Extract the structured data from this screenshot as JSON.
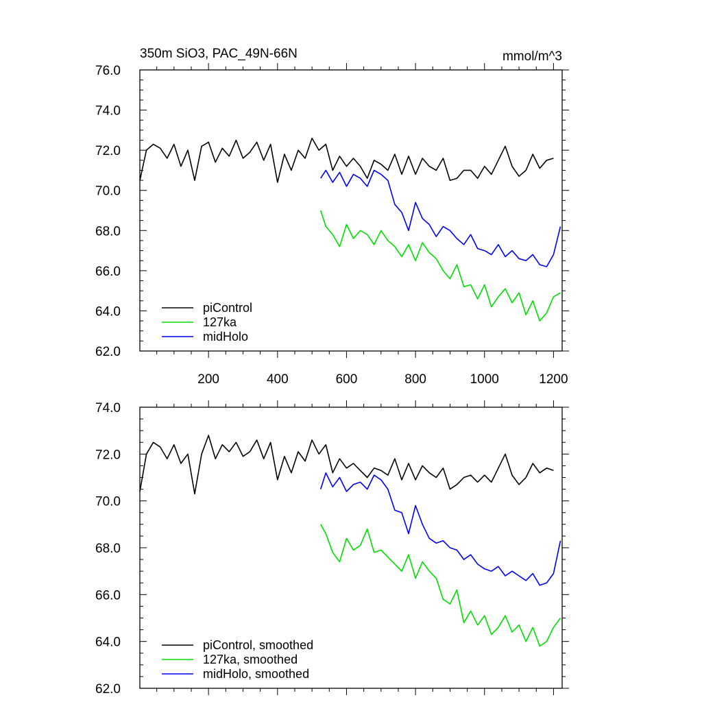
{
  "figure": {
    "title_left": "350m SiO3, PAC_49N-66N",
    "title_right": "mmol/m^3"
  },
  "chart_data": [
    {
      "type": "line",
      "title": "350m SiO3, PAC_49N-66N",
      "units": "mmol/m^3",
      "xlabel": "",
      "ylabel": "",
      "xlim": [
        1,
        1225
      ],
      "ylim": [
        62,
        76
      ],
      "xticks": [
        200,
        400,
        600,
        800,
        1000,
        1200
      ],
      "xtick_labels": [
        "200",
        "400",
        "600",
        "800",
        "1000",
        "1200"
      ],
      "yticks": [
        62,
        64,
        66,
        68,
        70,
        72,
        74,
        76
      ],
      "ytick_labels": [
        "62.0",
        "64.0",
        "66.0",
        "68.0",
        "70.0",
        "72.0",
        "74.0",
        "76.0"
      ],
      "legend": "bottom-left",
      "series": [
        {
          "name": "piControl",
          "color": "#000000",
          "x": [
            1,
            20,
            40,
            60,
            80,
            100,
            120,
            140,
            160,
            180,
            200,
            220,
            240,
            260,
            280,
            300,
            320,
            340,
            360,
            380,
            400,
            420,
            440,
            460,
            480,
            500,
            520,
            540,
            560,
            580,
            600,
            620,
            640,
            660,
            680,
            700,
            720,
            740,
            760,
            780,
            800,
            820,
            840,
            860,
            880,
            900,
            920,
            940,
            960,
            980,
            1000,
            1020,
            1040,
            1060,
            1080,
            1100,
            1120,
            1140,
            1160,
            1180,
            1200
          ],
          "y": [
            70.5,
            72.0,
            72.3,
            72.1,
            71.6,
            72.3,
            71.2,
            72.0,
            70.5,
            72.2,
            72.4,
            71.4,
            72.1,
            71.7,
            72.5,
            71.6,
            71.9,
            72.4,
            71.5,
            72.3,
            70.4,
            71.8,
            71.0,
            72.0,
            71.6,
            72.6,
            72.0,
            72.3,
            71.0,
            71.7,
            71.2,
            71.6,
            71.2,
            70.6,
            71.5,
            71.3,
            71.0,
            71.8,
            70.8,
            71.7,
            70.8,
            71.6,
            71.2,
            71.0,
            71.6,
            70.5,
            70.6,
            71.0,
            71.0,
            70.6,
            71.2,
            70.8,
            71.5,
            72.2,
            71.2,
            70.7,
            71.0,
            71.8,
            71.1,
            71.5,
            71.6
          ]
        },
        {
          "name": "127ka",
          "color": "#00dd00",
          "x": [
            525,
            540,
            560,
            580,
            600,
            620,
            640,
            660,
            680,
            700,
            720,
            740,
            760,
            780,
            800,
            820,
            840,
            860,
            880,
            900,
            920,
            940,
            960,
            980,
            1000,
            1020,
            1040,
            1060,
            1080,
            1100,
            1120,
            1140,
            1160,
            1180,
            1200,
            1220
          ],
          "y": [
            69.0,
            68.2,
            67.8,
            67.2,
            68.3,
            67.6,
            68.0,
            67.8,
            67.3,
            68.0,
            67.5,
            67.2,
            66.7,
            67.3,
            66.5,
            67.4,
            66.9,
            66.6,
            66.0,
            65.6,
            66.3,
            65.2,
            65.3,
            64.6,
            65.3,
            64.2,
            64.7,
            65.1,
            64.4,
            64.9,
            63.8,
            64.5,
            63.5,
            63.9,
            64.7,
            64.9
          ]
        },
        {
          "name": "midHolo",
          "color": "#0000ee",
          "x": [
            525,
            540,
            560,
            580,
            600,
            620,
            640,
            660,
            680,
            700,
            720,
            740,
            760,
            780,
            800,
            820,
            840,
            860,
            880,
            900,
            920,
            940,
            960,
            980,
            1000,
            1020,
            1040,
            1060,
            1080,
            1100,
            1120,
            1140,
            1160,
            1180,
            1200,
            1220
          ],
          "y": [
            70.6,
            71.0,
            70.4,
            70.9,
            70.2,
            70.8,
            70.6,
            70.2,
            71.0,
            70.8,
            70.5,
            69.3,
            68.9,
            68.0,
            69.4,
            68.6,
            68.3,
            67.7,
            68.2,
            68.0,
            67.6,
            67.3,
            67.8,
            67.1,
            67.0,
            66.8,
            67.3,
            66.7,
            67.0,
            66.6,
            66.5,
            66.8,
            66.3,
            66.2,
            66.8,
            68.2
          ]
        }
      ]
    },
    {
      "type": "line",
      "title": "",
      "xlabel": "",
      "ylabel": "",
      "xlim": [
        1,
        1225
      ],
      "ylim": [
        62,
        74
      ],
      "xticks": [
        200,
        400,
        600,
        800,
        1000,
        1200
      ],
      "yticks": [
        62,
        64,
        66,
        68,
        70,
        72,
        74
      ],
      "ytick_labels": [
        "62.0",
        "64.0",
        "66.0",
        "68.0",
        "70.0",
        "72.0",
        "74.0"
      ],
      "legend": "bottom-left",
      "series": [
        {
          "name": "piControl, smoothed",
          "color": "#000000",
          "x": [
            1,
            20,
            40,
            60,
            80,
            100,
            120,
            140,
            160,
            180,
            200,
            220,
            240,
            260,
            280,
            300,
            320,
            340,
            360,
            380,
            400,
            420,
            440,
            460,
            480,
            500,
            520,
            540,
            560,
            580,
            600,
            620,
            640,
            660,
            680,
            700,
            720,
            740,
            760,
            780,
            800,
            820,
            840,
            860,
            880,
            900,
            920,
            940,
            960,
            980,
            1000,
            1020,
            1040,
            1060,
            1080,
            1100,
            1120,
            1140,
            1160,
            1180,
            1200
          ],
          "y": [
            70.4,
            72.0,
            72.5,
            72.3,
            71.8,
            72.4,
            71.6,
            72.0,
            70.3,
            72.0,
            72.8,
            71.8,
            72.4,
            72.1,
            72.5,
            71.9,
            72.1,
            72.6,
            71.8,
            72.5,
            70.9,
            71.9,
            71.2,
            72.1,
            71.7,
            72.6,
            72.0,
            72.4,
            71.2,
            71.8,
            71.4,
            71.6,
            71.3,
            71.0,
            71.4,
            71.3,
            71.1,
            71.8,
            70.9,
            71.6,
            70.9,
            71.5,
            71.2,
            71.0,
            71.4,
            70.5,
            70.7,
            71.0,
            71.1,
            70.8,
            71.1,
            70.8,
            71.4,
            72.0,
            71.1,
            70.7,
            71.0,
            71.6,
            71.2,
            71.4,
            71.3
          ]
        },
        {
          "name": "127ka, smoothed",
          "color": "#00dd00",
          "x": [
            525,
            540,
            560,
            580,
            600,
            620,
            640,
            660,
            680,
            700,
            720,
            740,
            760,
            780,
            800,
            820,
            840,
            860,
            880,
            900,
            920,
            940,
            960,
            980,
            1000,
            1020,
            1040,
            1060,
            1080,
            1100,
            1120,
            1140,
            1160,
            1180,
            1200,
            1220
          ],
          "y": [
            69.0,
            68.6,
            67.8,
            67.4,
            68.4,
            67.9,
            68.1,
            68.8,
            67.8,
            67.9,
            67.6,
            67.3,
            67.0,
            67.7,
            66.7,
            67.4,
            67.0,
            66.7,
            65.8,
            65.6,
            66.2,
            64.8,
            65.3,
            64.7,
            65.1,
            64.3,
            64.6,
            65.1,
            64.4,
            64.7,
            64.0,
            64.6,
            63.8,
            64.0,
            64.6,
            65.0
          ]
        },
        {
          "name": "midHolo, smoothed",
          "color": "#0000ee",
          "x": [
            525,
            540,
            560,
            580,
            600,
            620,
            640,
            660,
            680,
            700,
            720,
            740,
            760,
            780,
            800,
            820,
            840,
            860,
            880,
            900,
            920,
            940,
            960,
            980,
            1000,
            1020,
            1040,
            1060,
            1080,
            1100,
            1120,
            1140,
            1160,
            1180,
            1200,
            1220
          ],
          "y": [
            70.5,
            71.2,
            70.6,
            71.0,
            70.4,
            70.7,
            70.8,
            70.5,
            71.1,
            70.9,
            70.5,
            69.6,
            69.5,
            68.6,
            69.8,
            69.0,
            68.4,
            68.2,
            68.3,
            68.0,
            67.9,
            67.5,
            67.7,
            67.3,
            67.1,
            67.0,
            67.2,
            66.8,
            67.0,
            66.8,
            66.6,
            66.9,
            66.4,
            66.5,
            66.9,
            68.3
          ]
        }
      ]
    }
  ]
}
